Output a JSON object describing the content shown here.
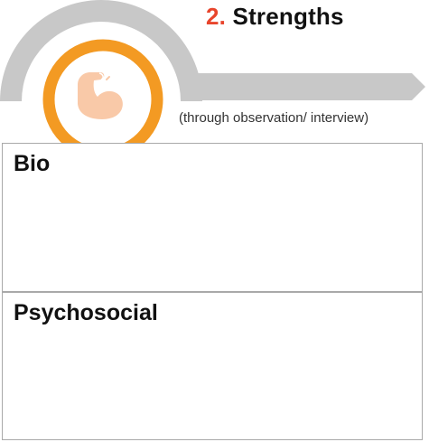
{
  "header": {
    "number": "2.",
    "title": "Strengths",
    "subtitle": "(through observation/ interview)",
    "icon": "flexed-arm-icon"
  },
  "sections": [
    {
      "label": "Bio",
      "content": ""
    },
    {
      "label": "Psychosocial",
      "content": ""
    }
  ],
  "colors": {
    "accent_number": "#e8452c",
    "ring_orange": "#f39a23",
    "arc_gray": "#c8c8c8",
    "icon_skin": "#f9c9a8",
    "border": "#a9a9a9"
  }
}
